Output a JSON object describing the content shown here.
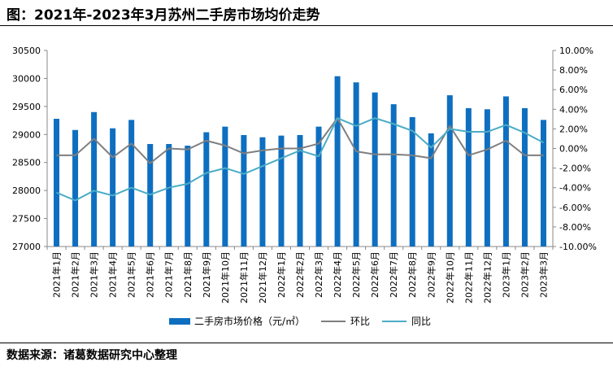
{
  "title": "图：2021年-2023年3月苏州二手房市场均价走势",
  "source": "数据来源：诸葛数据研究中心整理",
  "chart_data": {
    "type": "bar",
    "categories": [
      "2021年1月",
      "2021年2月",
      "2021年3月",
      "2021年4月",
      "2021年5月",
      "2021年6月",
      "2021年7月",
      "2021年8月",
      "2021年9月",
      "2021年10月",
      "2021年11月",
      "2021年12月",
      "2022年1月",
      "2022年2月",
      "2022年3月",
      "2022年4月",
      "2022年5月",
      "2022年6月",
      "2022年7月",
      "2022年8月",
      "2022年9月",
      "2022年10月",
      "2022年11月",
      "2022年12月",
      "2023年1月",
      "2023年2月",
      "2023年3月"
    ],
    "series": [
      {
        "name": "二手房市场价格（元/㎡）",
        "type": "bar",
        "axis": "left",
        "color": "#0e6fc0",
        "values": [
          29280,
          29080,
          29400,
          29110,
          29260,
          28830,
          28830,
          28800,
          29040,
          29140,
          28990,
          28950,
          28980,
          28990,
          29140,
          30040,
          29930,
          29750,
          29540,
          29310,
          29020,
          29700,
          29470,
          29450,
          29680,
          29470,
          29260
        ]
      },
      {
        "name": "环比",
        "type": "line",
        "axis": "right",
        "color": "#7f7f7f",
        "values": [
          -0.7,
          -0.7,
          1.0,
          -0.9,
          0.5,
          -1.5,
          0.0,
          -0.1,
          0.8,
          0.3,
          -0.5,
          -0.2,
          0.0,
          0.0,
          0.5,
          3.1,
          -0.3,
          -0.6,
          -0.6,
          -0.7,
          -1.0,
          2.3,
          -0.7,
          -0.1,
          0.8,
          -0.7,
          -0.7
        ]
      },
      {
        "name": "同比",
        "type": "line",
        "axis": "right",
        "color": "#4bacc6",
        "values": [
          -4.5,
          -5.3,
          -4.3,
          -4.8,
          -4.0,
          -4.7,
          -4.0,
          -3.6,
          -2.5,
          -2.0,
          -2.6,
          -1.8,
          -1.0,
          -0.2,
          -0.8,
          3.1,
          2.3,
          3.1,
          2.5,
          1.8,
          0.1,
          2.0,
          1.7,
          1.7,
          2.4,
          1.6,
          0.6
        ]
      }
    ],
    "y_left": {
      "min": 27000,
      "max": 30500,
      "step": 500,
      "ticks": [
        "27000",
        "27500",
        "28000",
        "28500",
        "29000",
        "29500",
        "30000",
        "30500"
      ]
    },
    "y_right": {
      "min": -10,
      "max": 10,
      "step": 2,
      "ticks": [
        "-10.00%",
        "-8.00%",
        "-6.00%",
        "-4.00%",
        "-2.00%",
        "0.00%",
        "2.00%",
        "4.00%",
        "6.00%",
        "8.00%",
        "10.00%"
      ]
    },
    "grid": false,
    "legend_position": "bottom"
  }
}
